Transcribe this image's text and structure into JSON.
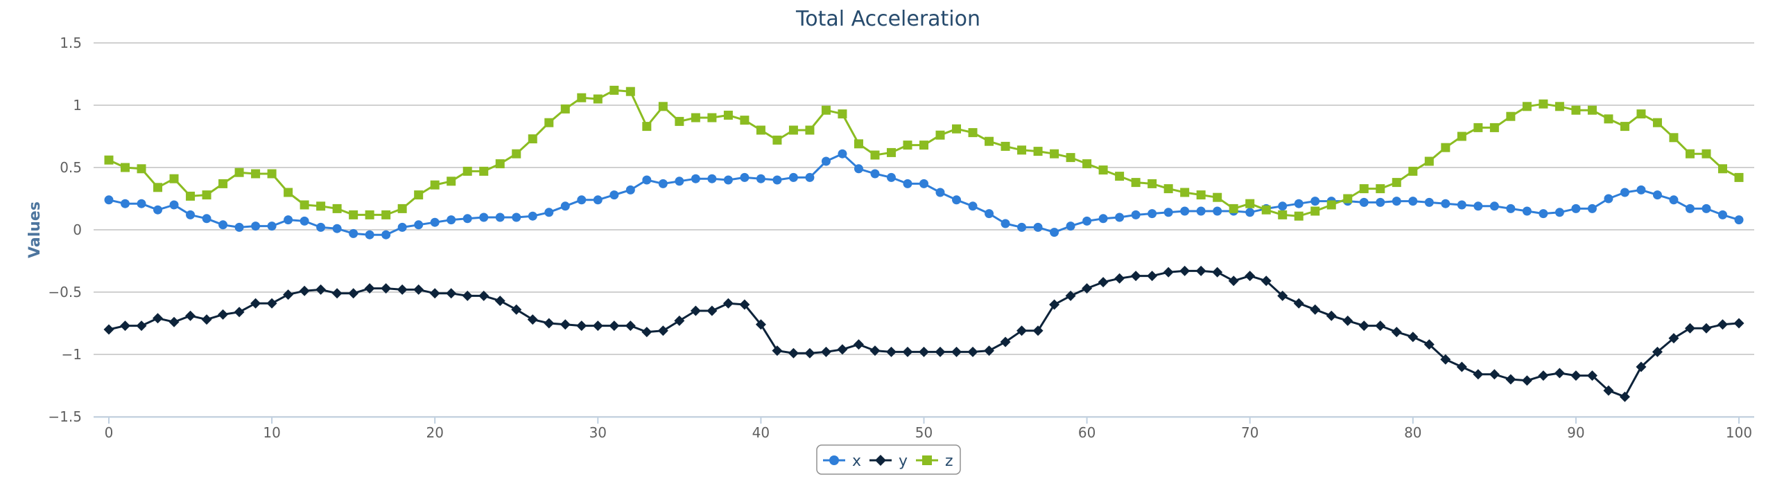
{
  "chart_data": {
    "type": "line",
    "title": "Total Acceleration",
    "ylabel": "Values",
    "xlabel": "",
    "ylim": [
      -1.5,
      1.5
    ],
    "yticks": [
      -1.5,
      -1,
      -0.5,
      0,
      0.5,
      1,
      1.5
    ],
    "ytick_labels": [
      "−1.5",
      "−1",
      "−0.5",
      "0",
      "0.5",
      "1",
      "1.5"
    ],
    "xlim": [
      0,
      100
    ],
    "xticks": [
      0,
      10,
      20,
      30,
      40,
      50,
      60,
      70,
      80,
      90,
      100
    ],
    "grid": "horizontal",
    "legend": "bottom-center",
    "x": [
      0,
      1,
      2,
      3,
      4,
      5,
      6,
      7,
      8,
      9,
      10,
      11,
      12,
      13,
      14,
      15,
      16,
      17,
      18,
      19,
      20,
      21,
      22,
      23,
      24,
      25,
      26,
      27,
      28,
      29,
      30,
      31,
      32,
      33,
      34,
      35,
      36,
      37,
      38,
      39,
      40,
      41,
      42,
      43,
      44,
      45,
      46,
      47,
      48,
      49,
      50,
      51,
      52,
      53,
      54,
      55,
      56,
      57,
      58,
      59,
      60,
      61,
      62,
      63,
      64,
      65,
      66,
      67,
      68,
      69,
      70,
      71,
      72,
      73,
      74,
      75,
      76,
      77,
      78,
      79,
      80,
      81,
      82,
      83,
      84,
      85,
      86,
      87,
      88,
      89,
      90,
      91,
      92,
      93,
      94,
      95,
      96,
      97,
      98,
      99,
      100
    ],
    "series": [
      {
        "name": "x",
        "color": "#2f7ed8",
        "marker": "circle",
        "values": [
          0.24,
          0.21,
          0.21,
          0.16,
          0.2,
          0.12,
          0.09,
          0.04,
          0.02,
          0.03,
          0.03,
          0.08,
          0.07,
          0.02,
          0.01,
          -0.03,
          -0.04,
          -0.04,
          0.02,
          0.04,
          0.06,
          0.08,
          0.09,
          0.1,
          0.1,
          0.1,
          0.11,
          0.14,
          0.19,
          0.24,
          0.24,
          0.28,
          0.32,
          0.4,
          0.37,
          0.39,
          0.41,
          0.41,
          0.4,
          0.42,
          0.41,
          0.4,
          0.42,
          0.42,
          0.55,
          0.61,
          0.49,
          0.45,
          0.42,
          0.37,
          0.37,
          0.3,
          0.24,
          0.19,
          0.13,
          0.05,
          0.02,
          0.02,
          -0.02,
          0.03,
          0.07,
          0.09,
          0.1,
          0.12,
          0.13,
          0.14,
          0.15,
          0.15,
          0.15,
          0.15,
          0.14,
          0.17,
          0.19,
          0.21,
          0.23,
          0.23,
          0.23,
          0.22,
          0.22,
          0.23,
          0.23,
          0.22,
          0.21,
          0.2,
          0.19,
          0.19,
          0.17,
          0.15,
          0.13,
          0.14,
          0.17,
          0.17,
          0.25,
          0.3,
          0.32,
          0.28,
          0.24,
          0.17,
          0.17,
          0.12,
          0.08
        ]
      },
      {
        "name": "y",
        "color": "#0d233a",
        "marker": "diamond",
        "values": [
          -0.8,
          -0.77,
          -0.77,
          -0.71,
          -0.74,
          -0.69,
          -0.72,
          -0.68,
          -0.66,
          -0.59,
          -0.59,
          -0.52,
          -0.49,
          -0.48,
          -0.51,
          -0.51,
          -0.47,
          -0.47,
          -0.48,
          -0.48,
          -0.51,
          -0.51,
          -0.53,
          -0.53,
          -0.57,
          -0.64,
          -0.72,
          -0.75,
          -0.76,
          -0.77,
          -0.77,
          -0.77,
          -0.77,
          -0.82,
          -0.81,
          -0.73,
          -0.65,
          -0.65,
          -0.59,
          -0.6,
          -0.76,
          -0.97,
          -0.99,
          -0.99,
          -0.98,
          -0.96,
          -0.92,
          -0.97,
          -0.98,
          -0.98,
          -0.98,
          -0.98,
          -0.98,
          -0.98,
          -0.97,
          -0.9,
          -0.81,
          -0.81,
          -0.6,
          -0.53,
          -0.47,
          -0.42,
          -0.39,
          -0.37,
          -0.37,
          -0.34,
          -0.33,
          -0.33,
          -0.34,
          -0.41,
          -0.37,
          -0.41,
          -0.53,
          -0.59,
          -0.64,
          -0.69,
          -0.73,
          -0.77,
          -0.77,
          -0.82,
          -0.86,
          -0.92,
          -1.04,
          -1.1,
          -1.16,
          -1.16,
          -1.2,
          -1.21,
          -1.17,
          -1.15,
          -1.17,
          -1.17,
          -1.29,
          -1.34,
          -1.1,
          -0.98,
          -0.87,
          -0.79,
          -0.79,
          -0.76,
          -0.75
        ]
      },
      {
        "name": "z",
        "color": "#8bbc21",
        "marker": "square",
        "values": [
          0.56,
          0.5,
          0.49,
          0.34,
          0.41,
          0.27,
          0.28,
          0.37,
          0.46,
          0.45,
          0.45,
          0.3,
          0.2,
          0.19,
          0.17,
          0.12,
          0.12,
          0.12,
          0.17,
          0.28,
          0.36,
          0.39,
          0.47,
          0.47,
          0.53,
          0.61,
          0.73,
          0.86,
          0.97,
          1.06,
          1.05,
          1.12,
          1.11,
          0.83,
          0.99,
          0.87,
          0.9,
          0.9,
          0.92,
          0.88,
          0.8,
          0.72,
          0.8,
          0.8,
          0.96,
          0.93,
          0.69,
          0.6,
          0.62,
          0.68,
          0.68,
          0.76,
          0.81,
          0.78,
          0.71,
          0.67,
          0.64,
          0.63,
          0.61,
          0.58,
          0.53,
          0.48,
          0.43,
          0.38,
          0.37,
          0.33,
          0.3,
          0.28,
          0.26,
          0.17,
          0.21,
          0.16,
          0.12,
          0.11,
          0.15,
          0.2,
          0.25,
          0.33,
          0.33,
          0.38,
          0.47,
          0.55,
          0.66,
          0.75,
          0.82,
          0.82,
          0.91,
          0.99,
          1.01,
          0.99,
          0.96,
          0.96,
          0.89,
          0.83,
          0.93,
          0.86,
          0.74,
          0.61,
          0.61,
          0.49,
          0.42
        ]
      }
    ]
  }
}
